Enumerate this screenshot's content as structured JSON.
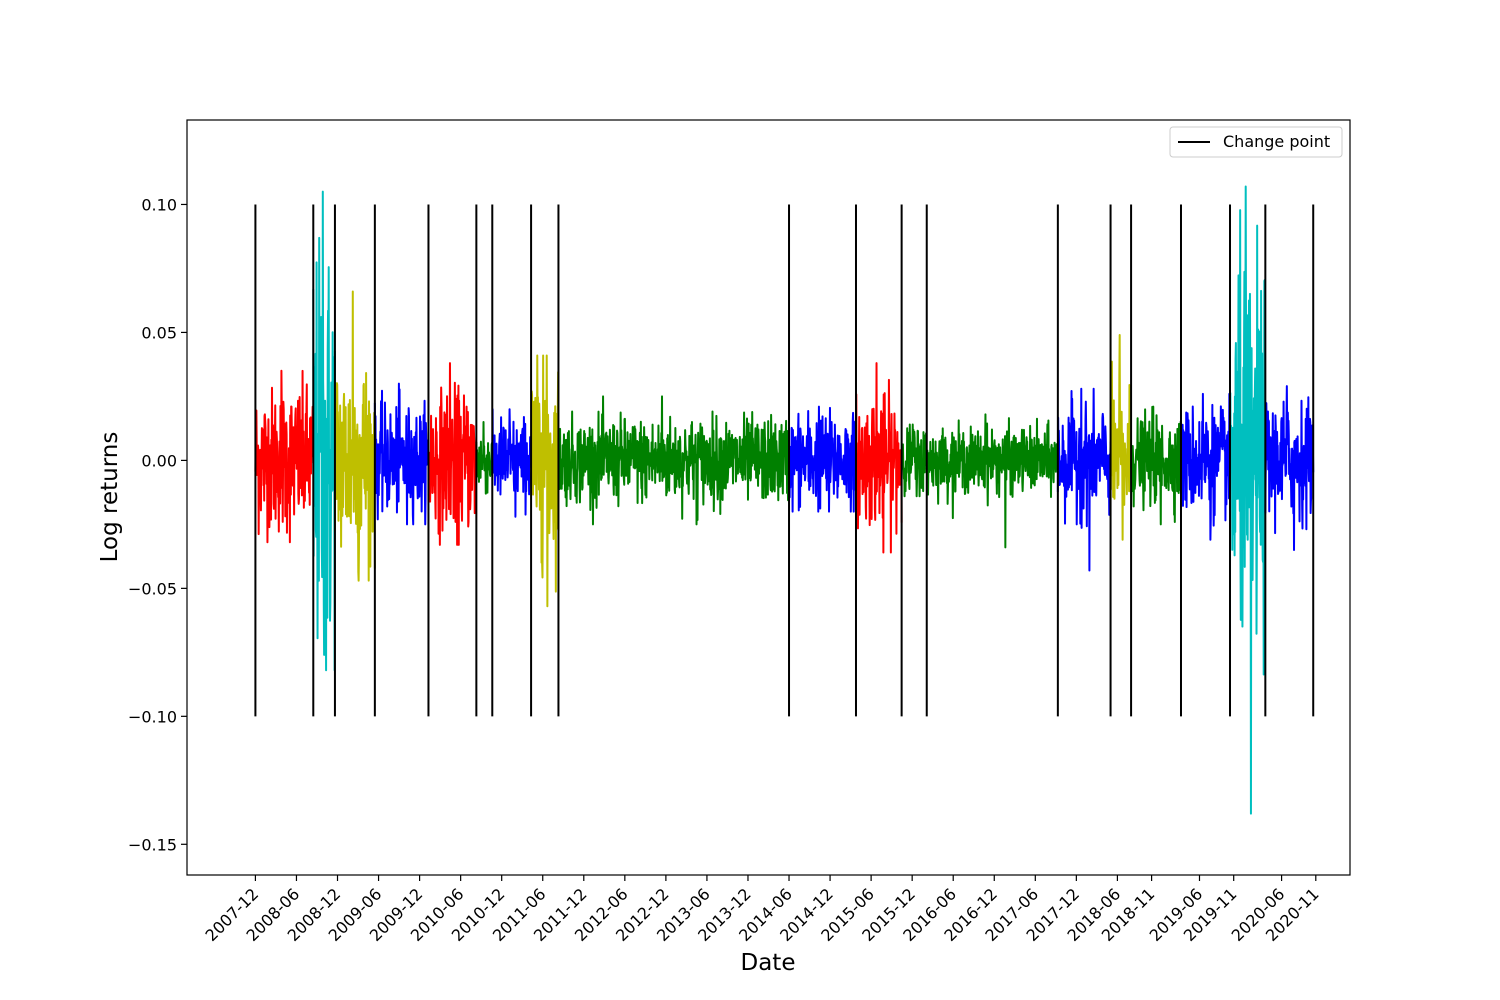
{
  "chart_data": {
    "type": "line",
    "title": "",
    "xlabel": "Date",
    "ylabel": "Log returns",
    "ylim": [
      -0.162,
      0.133
    ],
    "xlim": [
      "2007-02",
      "2021-04"
    ],
    "grid": false,
    "legend": {
      "position": "top-right",
      "entries": [
        "Change point"
      ]
    },
    "x_tick_labels": [
      "2007-12",
      "2008-06",
      "2008-12",
      "2009-06",
      "2009-12",
      "2010-06",
      "2010-12",
      "2011-06",
      "2011-12",
      "2012-06",
      "2012-12",
      "2013-06",
      "2013-12",
      "2014-06",
      "2014-12",
      "2015-06",
      "2015-12",
      "2016-06",
      "2016-12",
      "2017-06",
      "2017-12",
      "2018-06",
      "2018-11",
      "2019-06",
      "2019-11",
      "2020-06",
      "2020-11"
    ],
    "y_ticks": [
      -0.15,
      -0.1,
      -0.05,
      0.0,
      0.05,
      0.1
    ],
    "y_tick_labels": [
      "−0.15",
      "−0.10",
      "−0.05",
      "0.00",
      "0.05",
      "0.10"
    ],
    "change_point_level": {
      "ymin": -0.1,
      "ymax": 0.1,
      "color": "#000000",
      "name": "Change point"
    },
    "change_points": [
      "2007-12-01",
      "2008-08-15",
      "2008-11-20",
      "2009-05-15",
      "2010-01-10",
      "2010-08-10",
      "2010-10-20",
      "2011-04-10",
      "2011-08-10",
      "2014-06-01",
      "2015-03-25",
      "2015-10-15",
      "2016-02-05",
      "2017-09-10",
      "2018-05-01",
      "2018-08-01",
      "2019-03-10",
      "2019-10-15",
      "2020-03-20",
      "2020-10-20"
    ],
    "series": [
      {
        "color": "#ff0000",
        "start": "2007-12-01",
        "end": "2008-08-15",
        "vol": 0.014,
        "max": 0.035,
        "min": -0.032
      },
      {
        "color": "#00bfbf",
        "start": "2008-08-15",
        "end": "2008-11-20",
        "vol": 0.04,
        "max": 0.105,
        "min": -0.082
      },
      {
        "color": "#bfbf00",
        "start": "2008-11-20",
        "end": "2009-05-15",
        "vol": 0.02,
        "max": 0.066,
        "min": -0.047
      },
      {
        "color": "#0000ff",
        "start": "2009-05-15",
        "end": "2010-01-10",
        "vol": 0.01,
        "max": 0.03,
        "min": -0.025
      },
      {
        "color": "#ff0000",
        "start": "2010-01-10",
        "end": "2010-08-10",
        "vol": 0.013,
        "max": 0.038,
        "min": -0.033
      },
      {
        "color": "#008000",
        "start": "2010-08-10",
        "end": "2010-10-20",
        "vol": 0.006,
        "max": 0.015,
        "min": -0.013
      },
      {
        "color": "#0000ff",
        "start": "2010-10-20",
        "end": "2011-04-10",
        "vol": 0.008,
        "max": 0.02,
        "min": -0.022
      },
      {
        "color": "#bfbf00",
        "start": "2011-04-10",
        "end": "2011-08-10",
        "vol": 0.018,
        "max": 0.041,
        "min": -0.057
      },
      {
        "color": "#008000",
        "start": "2011-08-10",
        "end": "2014-06-01",
        "vol": 0.008,
        "max": 0.025,
        "min": -0.025
      },
      {
        "color": "#0000ff",
        "start": "2014-06-01",
        "end": "2015-03-25",
        "vol": 0.009,
        "max": 0.021,
        "min": -0.02
      },
      {
        "color": "#ff0000",
        "start": "2015-03-25",
        "end": "2015-10-15",
        "vol": 0.012,
        "max": 0.038,
        "min": -0.036
      },
      {
        "color": "#008000",
        "start": "2015-10-15",
        "end": "2016-02-05",
        "vol": 0.007,
        "max": 0.014,
        "min": -0.014
      },
      {
        "color": "#008000",
        "start": "2016-02-05",
        "end": "2017-09-10",
        "vol": 0.006,
        "max": 0.018,
        "min": -0.034
      },
      {
        "color": "#0000ff",
        "start": "2017-09-10",
        "end": "2018-05-01",
        "vol": 0.01,
        "max": 0.028,
        "min": -0.043
      },
      {
        "color": "#bfbf00",
        "start": "2018-05-01",
        "end": "2018-08-01",
        "vol": 0.013,
        "max": 0.049,
        "min": -0.031
      },
      {
        "color": "#008000",
        "start": "2018-08-01",
        "end": "2019-03-10",
        "vol": 0.008,
        "max": 0.021,
        "min": -0.025
      },
      {
        "color": "#0000ff",
        "start": "2019-03-10",
        "end": "2019-10-15",
        "vol": 0.01,
        "max": 0.026,
        "min": -0.031
      },
      {
        "color": "#00bfbf",
        "start": "2019-10-15",
        "end": "2020-03-20",
        "vol": 0.035,
        "max": 0.107,
        "min": -0.138
      },
      {
        "color": "#0000ff",
        "start": "2020-03-20",
        "end": "2020-10-20",
        "vol": 0.011,
        "max": 0.029,
        "min": -0.035
      }
    ]
  }
}
